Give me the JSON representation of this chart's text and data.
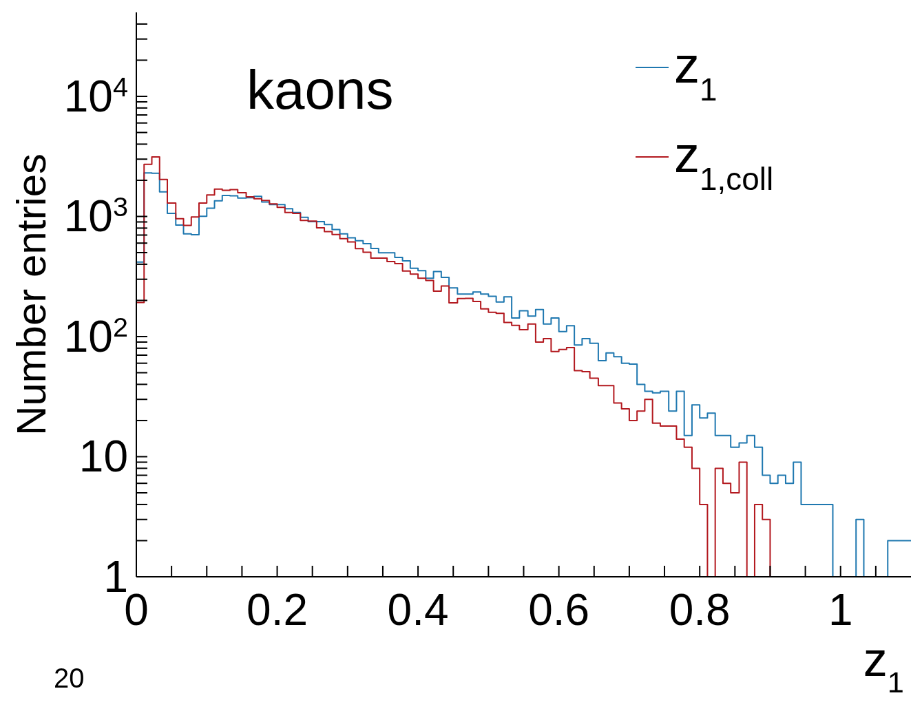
{
  "chart_data": {
    "type": "histogram",
    "xlabel": "z$_{1}$",
    "ylabel": "Number entries",
    "annotations": [
      "kaons",
      "20"
    ],
    "bins": [
      0,
      0.011,
      0.022,
      0.033,
      0.044,
      0.056,
      0.067,
      0.078,
      0.089,
      0.1,
      0.111,
      0.122,
      0.133,
      0.144,
      0.156,
      0.167,
      0.178,
      0.189,
      0.2,
      0.211,
      0.222,
      0.233,
      0.244,
      0.256,
      0.267,
      0.278,
      0.289,
      0.3,
      0.311,
      0.322,
      0.333,
      0.344,
      0.356,
      0.367,
      0.378,
      0.389,
      0.4,
      0.411,
      0.422,
      0.433,
      0.444,
      0.456,
      0.467,
      0.478,
      0.489,
      0.5,
      0.511,
      0.522,
      0.533,
      0.544,
      0.556,
      0.567,
      0.578,
      0.589,
      0.6,
      0.611,
      0.622,
      0.633,
      0.644,
      0.656,
      0.667,
      0.678,
      0.689,
      0.7,
      0.711,
      0.722,
      0.733,
      0.744,
      0.756,
      0.767,
      0.778,
      0.789,
      0.8,
      0.811,
      0.822,
      0.833,
      0.844,
      0.856,
      0.867,
      0.878,
      0.889,
      0.9,
      0.911,
      0.922,
      0.933,
      0.944,
      0.956,
      0.967,
      0.978,
      0.989,
      1,
      1.011,
      1.022,
      1.033,
      1.044,
      1.056,
      1.067,
      1.078,
      1.089,
      1.1
    ],
    "series": [
      {
        "name": "z$_{1}$",
        "color": "#1f78b0",
        "values": [
          417,
          2300,
          2290,
          1600,
          1060,
          849,
          717,
          705,
          1004,
          1173,
          1350,
          1497,
          1484,
          1425,
          1430,
          1472,
          1321,
          1254,
          1254,
          1158,
          1079,
          982,
          907,
          907,
          856,
          779,
          717,
          665,
          628,
          593,
          542,
          499,
          499,
          456,
          427,
          370,
          354,
          306,
          348,
          311,
          254,
          226,
          226,
          235,
          226,
          216,
          194,
          214,
          143,
          164,
          148,
          168,
          127,
          143,
          110,
          123,
          85,
          96,
          88,
          63,
          73,
          68,
          60,
          59,
          40,
          35,
          34,
          35,
          24,
          35,
          15,
          27,
          21,
          23,
          15,
          15,
          12,
          13,
          15,
          12,
          7,
          6,
          7,
          6,
          9,
          4,
          4,
          4,
          4,
          1,
          1,
          1,
          3,
          1,
          1,
          1,
          2,
          2,
          2
        ]
      },
      {
        "name": "z$_{1,coll}$",
        "color": "#b3191f",
        "values": [
          192,
          2715,
          3130,
          2030,
          1293,
          957,
          841,
          991,
          1293,
          1511,
          1687,
          1652,
          1670,
          1578,
          1455,
          1405,
          1358,
          1274,
          1191,
          1079,
          1060,
          928,
          915,
          804,
          749,
          708,
          653,
          614,
          540,
          503,
          450,
          450,
          421,
          405,
          351,
          331,
          306,
          293,
          239,
          264,
          191,
          207,
          208,
          196,
          170,
          159,
          156,
          131,
          124,
          114,
          127,
          90,
          96,
          75,
          78,
          81,
          52,
          51,
          45,
          39,
          39,
          28,
          25,
          20,
          24,
          30,
          19,
          18,
          18,
          14,
          12,
          8,
          4,
          1,
          8,
          6,
          5,
          9,
          1,
          4,
          3,
          1,
          1,
          1,
          1,
          1,
          1,
          1,
          1,
          1,
          1,
          1,
          1,
          1,
          1,
          1,
          1,
          1,
          1
        ]
      }
    ],
    "log": true,
    "xlim": [
      0,
      1.1
    ],
    "ylim": [
      1,
      50000
    ],
    "xticks": [
      0,
      {
        "value": 0.05,
        "label": null
      },
      {
        "value": 0.1,
        "label": null
      },
      {
        "value": 0.15,
        "label": null
      },
      0.2,
      {
        "value": 0.25,
        "label": null
      },
      {
        "value": 0.3,
        "label": null
      },
      {
        "value": 0.35,
        "label": null
      },
      0.4,
      {
        "value": 0.45,
        "label": null
      },
      {
        "value": 0.5,
        "label": null
      },
      {
        "value": 0.55,
        "label": null
      },
      0.6,
      {
        "value": 0.65,
        "label": null
      },
      {
        "value": 0.7,
        "label": null
      },
      {
        "value": 0.75,
        "label": null
      },
      0.8,
      {
        "value": 0.85,
        "label": null
      },
      {
        "value": 0.9,
        "label": null
      },
      {
        "value": 0.95,
        "label": null
      },
      1,
      {
        "value": 1.05,
        "label": null
      }
    ],
    "yticks": [
      1,
      {
        "value": 2,
        "label": null
      },
      {
        "value": 3,
        "label": null
      },
      {
        "value": 4,
        "label": null
      },
      {
        "value": 5,
        "label": null
      },
      {
        "value": 6,
        "label": null
      },
      {
        "value": 7,
        "label": null
      },
      {
        "value": 8,
        "label": null
      },
      {
        "value": 9,
        "label": null
      },
      10,
      {
        "value": 20,
        "label": null
      },
      {
        "value": 30,
        "label": null
      },
      {
        "value": 40,
        "label": null
      },
      {
        "value": 50,
        "label": null
      },
      {
        "value": 60,
        "label": null
      },
      {
        "value": 70,
        "label": null
      },
      {
        "value": 80,
        "label": null
      },
      {
        "value": 90,
        "label": null
      },
      {
        "value": 100,
        "label": "10$^{2}$"
      },
      {
        "value": 200,
        "label": null
      },
      {
        "value": 300,
        "label": null
      },
      {
        "value": 400,
        "label": null
      },
      {
        "value": 500,
        "label": null
      },
      {
        "value": 600,
        "label": null
      },
      {
        "value": 700,
        "label": null
      },
      {
        "value": 800,
        "label": null
      },
      {
        "value": 900,
        "label": null
      },
      {
        "value": 1000,
        "label": "10$^{3}$"
      },
      {
        "value": 2000,
        "label": null
      },
      {
        "value": 3000,
        "label": null
      },
      {
        "value": 4000,
        "label": null
      },
      {
        "value": 5000,
        "label": null
      },
      {
        "value": 6000,
        "label": null
      },
      {
        "value": 7000,
        "label": null
      },
      {
        "value": 8000,
        "label": null
      },
      {
        "value": 9000,
        "label": null
      },
      {
        "value": 10000,
        "label": "10$^{4}$"
      },
      {
        "value": 20000,
        "label": null
      },
      {
        "value": 30000,
        "label": null
      },
      {
        "value": 40000,
        "label": null
      }
    ],
    "legend": "top right"
  }
}
